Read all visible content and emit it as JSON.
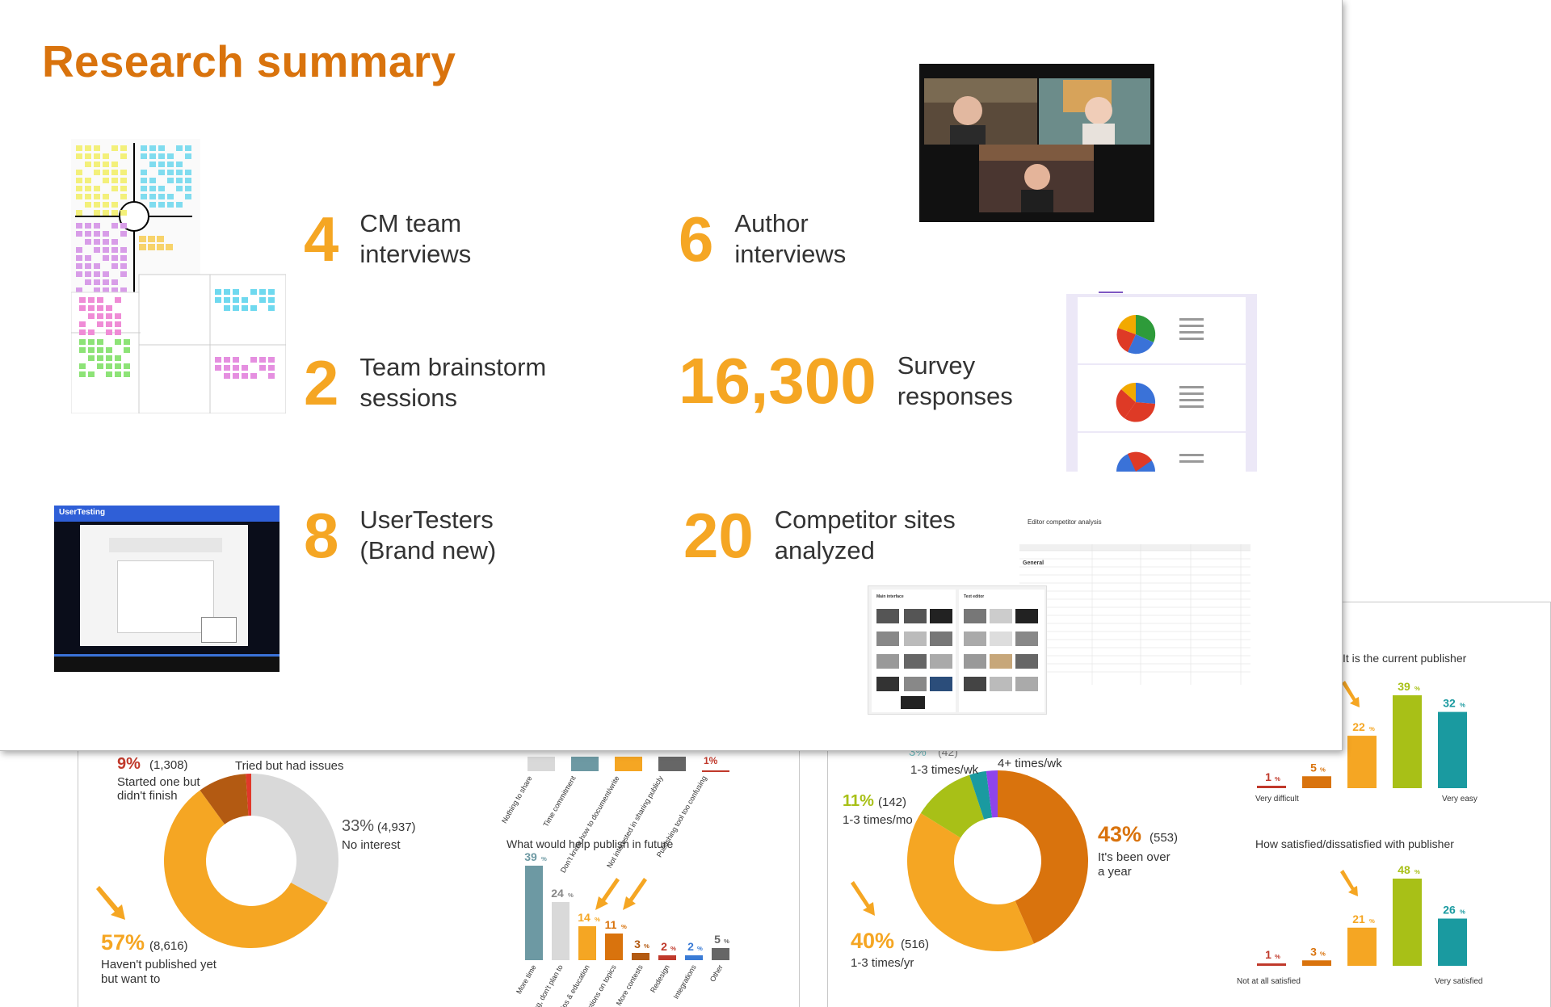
{
  "title": "Research summary",
  "stats": [
    {
      "number": "4",
      "line1": "CM team",
      "line2": "interviews"
    },
    {
      "number": "6",
      "line1": "Author",
      "line2": "interviews"
    },
    {
      "number": "2",
      "line1": "Team brainstorm",
      "line2": "sessions"
    },
    {
      "number": "16,300",
      "line1": "Survey",
      "line2": "responses"
    },
    {
      "number": "8",
      "line1": "UserTesters",
      "line2": "(Brand new)"
    },
    {
      "number": "20",
      "line1": "Competitor sites",
      "line2": "analyzed"
    }
  ],
  "colors": {
    "accent": "#d9730d",
    "number": "#f5a623"
  },
  "thumbnails": {
    "usertesting_logo": "UserTesting",
    "spreadsheet_title": "Editor competitor analysis",
    "spreadsheet_general": "General",
    "mockup_left": "Main interface",
    "mockup_right": "Text editor"
  },
  "left_slide": {
    "donut": {
      "segments": [
        {
          "label": "Started one but didn't finish",
          "pct": "9%",
          "count": "(1,308)",
          "value": 9
        },
        {
          "label": "No interest",
          "pct": "33%",
          "count": "(4,937)",
          "value": 33
        },
        {
          "label": "Haven't published yet but want to",
          "pct": "57%",
          "count": "(8,616)",
          "value": 57
        },
        {
          "label": "Tried but had issues",
          "pct": "",
          "count": "",
          "value": 1
        }
      ],
      "label_9_line1": "Started one but",
      "label_9_line2": "didn't finish",
      "label_33": "No interest",
      "label_57_line1": "Haven't published yet",
      "label_57_line2": "but want to",
      "label_tried": "Tried but had issues"
    },
    "top_bars": {
      "labels": [
        "Nothing to share",
        "Time commitment",
        "Don't know how to document/write",
        "Not interested in sharing publicly",
        "Publishing tool too confusing"
      ],
      "last_value": "1%"
    },
    "future_chart": {
      "title": "What would help publish in future",
      "bars": [
        {
          "label": "More time",
          "pct": "39",
          "value": 39,
          "color": "#6d99a3"
        },
        {
          "label": "Nothing, don't plan to",
          "pct": "24",
          "value": 24,
          "color": "#d9d9d9"
        },
        {
          "label": "Tips & education",
          "pct": "14",
          "value": 14,
          "color": "#f5a623"
        },
        {
          "label": "Suggestions on topics",
          "pct": "11",
          "value": 11,
          "color": "#d9730d"
        },
        {
          "label": "More contests",
          "pct": "3",
          "value": 3,
          "color": "#b35a12"
        },
        {
          "label": "Redesign",
          "pct": "2",
          "value": 2,
          "color": "#c0392b"
        },
        {
          "label": "Integrations",
          "pct": "2",
          "value": 2,
          "color": "#3a7bd5"
        },
        {
          "label": "Other",
          "pct": "5",
          "value": 5,
          "color": "#666666"
        }
      ],
      "suffix": "%"
    }
  },
  "right_slide": {
    "donut": {
      "segments": [
        {
          "pct": "43%",
          "count": "(553)",
          "value": 43,
          "color": "#d9730d"
        },
        {
          "pct": "40%",
          "count": "(516)",
          "value": 40,
          "color": "#f5a623"
        },
        {
          "pct": "11%",
          "count": "(142)",
          "value": 11,
          "color": "#a8c017"
        },
        {
          "pct": "",
          "count": "",
          "value": 3,
          "color": "#1a9aa0"
        },
        {
          "pct": "",
          "count": "",
          "value": 2,
          "color": "#8e44ec"
        }
      ],
      "label_43_line1": "It's been over",
      "label_43_line2": "a year",
      "label_40": "1-3 times/yr",
      "label_11": "1-3 times/mo",
      "label_wk": "1-3 times/wk",
      "label_4wk": "4+ times/wk",
      "partial_pct": "3%",
      "partial_count": "(42)"
    },
    "ease_chart": {
      "title": "It is the current publisher",
      "bars": [
        {
          "pct": "1",
          "value": 1,
          "color": "#c0392b"
        },
        {
          "pct": "5",
          "value": 5,
          "color": "#d9730d"
        },
        {
          "pct": "22",
          "value": 22,
          "color": "#f5a623"
        },
        {
          "pct": "39",
          "value": 39,
          "color": "#a8c017"
        },
        {
          "pct": "32",
          "value": 32,
          "color": "#1a9aa0"
        }
      ],
      "left_label": "Very difficult",
      "right_label": "Very easy"
    },
    "satisfied_chart": {
      "title": "How satisfied/dissatisfied with publisher",
      "bars": [
        {
          "pct": "1",
          "value": 1,
          "color": "#c0392b"
        },
        {
          "pct": "3",
          "value": 3,
          "color": "#d9730d"
        },
        {
          "pct": "21",
          "value": 21,
          "color": "#f5a623"
        },
        {
          "pct": "48",
          "value": 48,
          "color": "#a8c017"
        },
        {
          "pct": "26",
          "value": 26,
          "color": "#1a9aa0"
        }
      ],
      "left_label": "Not at all satisfied",
      "right_label": "Very satisfied"
    }
  }
}
